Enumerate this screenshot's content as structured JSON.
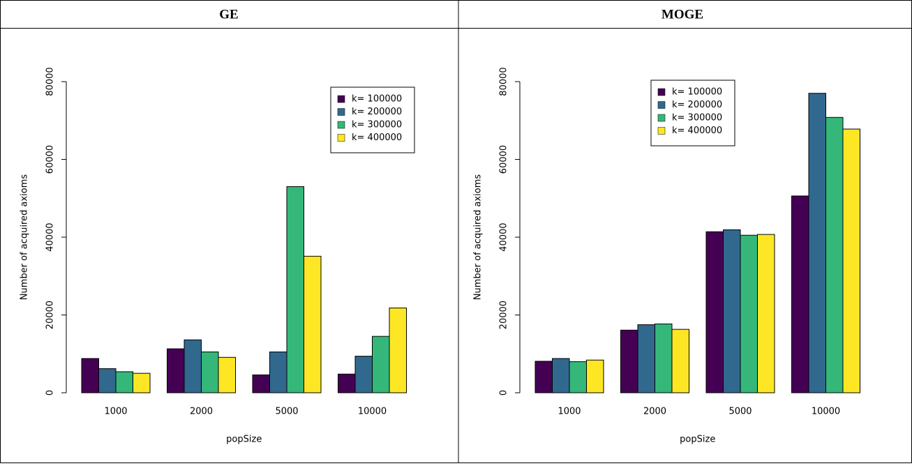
{
  "chart_data": [
    {
      "type": "bar",
      "title": "GE",
      "x_label": "popSize",
      "y_label": "Number of acquired axioms",
      "categories": [
        "1000",
        "2000",
        "5000",
        "10000"
      ],
      "series": [
        {
          "name": "k= 100000",
          "color": "#440154",
          "values": [
            8800,
            11300,
            4600,
            4800
          ]
        },
        {
          "name": "k= 200000",
          "color": "#31688e",
          "values": [
            6200,
            13600,
            10500,
            9400
          ]
        },
        {
          "name": "k= 300000",
          "color": "#35b779",
          "values": [
            5400,
            10500,
            53000,
            14500
          ]
        },
        {
          "name": "k= 400000",
          "color": "#fde725",
          "values": [
            5000,
            9100,
            35100,
            21800
          ]
        }
      ],
      "ylim": [
        0,
        80000
      ],
      "yticks": [
        0,
        20000,
        40000,
        60000,
        80000
      ],
      "legend": "topright"
    },
    {
      "type": "bar",
      "title": "MOGE",
      "x_label": "popSize",
      "y_label": "Number of acquired axioms",
      "categories": [
        "1000",
        "2000",
        "5000",
        "10000"
      ],
      "series": [
        {
          "name": "k= 100000",
          "color": "#440154",
          "values": [
            8100,
            16100,
            41400,
            50600
          ]
        },
        {
          "name": "k= 200000",
          "color": "#31688e",
          "values": [
            8800,
            17500,
            41900,
            77000
          ]
        },
        {
          "name": "k= 300000",
          "color": "#35b779",
          "values": [
            8000,
            17700,
            40500,
            70800
          ]
        },
        {
          "name": "k= 400000",
          "color": "#fde725",
          "values": [
            8400,
            16300,
            40700,
            67800
          ]
        }
      ],
      "ylim": [
        0,
        80000
      ],
      "yticks": [
        0,
        20000,
        40000,
        60000,
        80000
      ],
      "legend": "top"
    }
  ]
}
